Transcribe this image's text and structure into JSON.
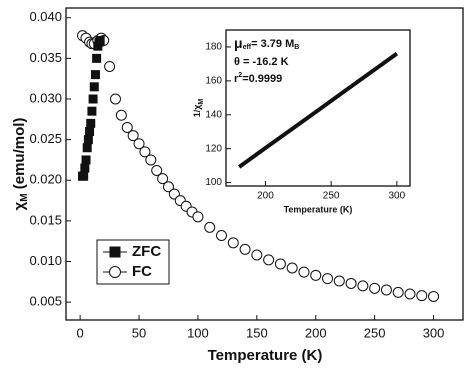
{
  "chart_data": [
    {
      "type": "scatter",
      "xlabel": "Temperature (K)",
      "ylabel": [
        "χ",
        "M",
        " (emu/mol)"
      ],
      "xlim": [
        -12,
        325
      ],
      "ylim": [
        0.0028,
        0.0412
      ],
      "xticks": [
        0,
        50,
        100,
        150,
        200,
        250,
        300
      ],
      "yticks": [
        0.005,
        {
          "value": 0.01,
          "label": "0.010"
        },
        0.015,
        {
          "value": 0.02,
          "label": "0.020"
        },
        0.025,
        {
          "value": 0.03,
          "label": "0.030"
        },
        0.035,
        {
          "value": 0.04,
          "label": "0.040"
        }
      ],
      "legend": "lower-left",
      "series": [
        {
          "name": "FC",
          "marker": "circle",
          "color": "#111111",
          "fill": "#ffffff",
          "x": [
            2,
            5,
            8,
            10,
            12,
            15,
            18,
            20,
            25,
            30,
            35,
            40,
            45,
            50,
            55,
            60,
            65,
            70,
            75,
            80,
            85,
            90,
            95,
            100,
            110,
            120,
            130,
            140,
            150,
            160,
            170,
            180,
            190,
            200,
            210,
            220,
            230,
            240,
            250,
            260,
            270,
            280,
            290,
            300
          ],
          "values": [
            0.0378,
            0.0375,
            0.037,
            0.0368,
            0.0368,
            0.0372,
            0.0375,
            0.0372,
            0.034,
            0.03,
            0.028,
            0.0265,
            0.0255,
            0.0245,
            0.0235,
            0.0225,
            0.0212,
            0.0202,
            0.0192,
            0.0183,
            0.0175,
            0.0168,
            0.0161,
            0.0155,
            0.0142,
            0.0132,
            0.0123,
            0.0115,
            0.0108,
            0.0102,
            0.0097,
            0.0092,
            0.0087,
            0.0083,
            0.0079,
            0.0076,
            0.0073,
            0.007,
            0.0067,
            0.0065,
            0.0062,
            0.006,
            0.0058,
            0.0057
          ]
        },
        {
          "name": "ZFC",
          "marker": "square",
          "color": "#111111",
          "fill": "#111111",
          "x": [
            2,
            3,
            4,
            5,
            6,
            7,
            8,
            9,
            10,
            11,
            12,
            13,
            14,
            15,
            16,
            17
          ],
          "values": [
            0.0205,
            0.0205,
            0.0215,
            0.0225,
            0.024,
            0.025,
            0.026,
            0.027,
            0.0285,
            0.03,
            0.0315,
            0.033,
            0.035,
            0.0365,
            0.037,
            0.0372
          ]
        }
      ]
    },
    {
      "type": "line",
      "xlabel": "Temperature (K)",
      "ylabel": [
        "1/χ",
        "M"
      ],
      "xlim": [
        170,
        310
      ],
      "ylim": [
        98,
        190
      ],
      "xticks": [
        200,
        250,
        300
      ],
      "yticks": [
        100,
        120,
        140,
        160,
        180
      ],
      "annotations": {
        "mu_eff": [
          "μ",
          "eff",
          "= 3.79 M",
          "B"
        ],
        "theta": "θ = -16.2 K",
        "r2": [
          "r",
          "2",
          "=0.9999"
        ]
      },
      "series": [
        {
          "color": "#111111",
          "x": [
            180,
            200,
            220,
            240,
            260,
            280,
            300
          ],
          "values": [
            109.2,
            120.4,
            131.5,
            142.6,
            153.8,
            164.9,
            176.1
          ]
        }
      ]
    }
  ]
}
